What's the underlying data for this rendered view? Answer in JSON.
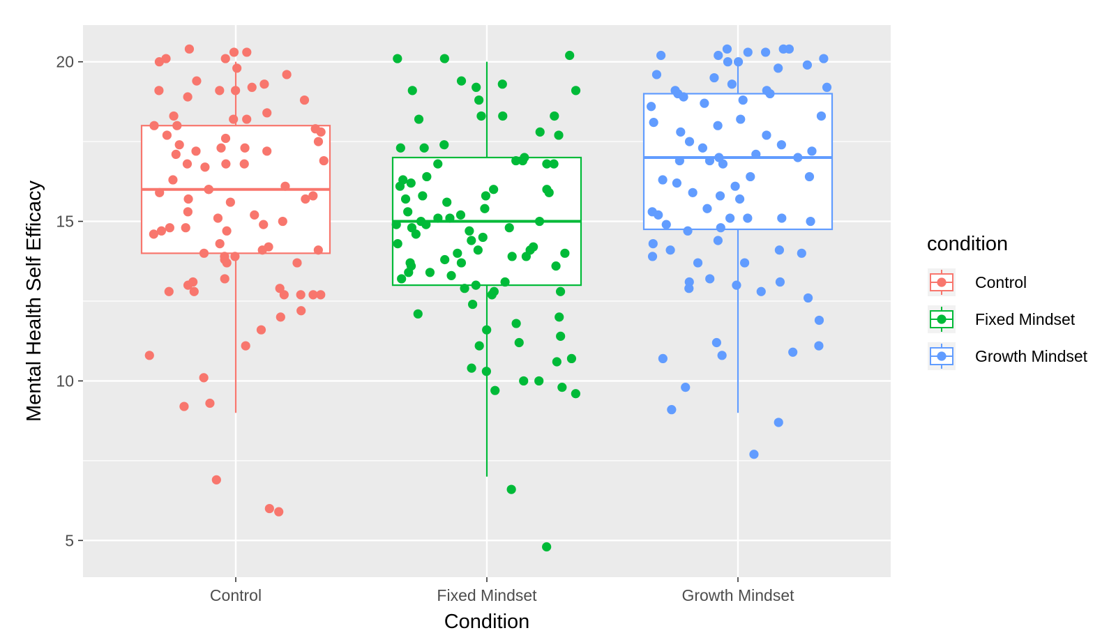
{
  "chart_data": {
    "type": "box",
    "xlabel": "Condition",
    "ylabel": "Mental Health Self Efficacy",
    "ylim": [
      3.85,
      21.15
    ],
    "yticks": [
      5,
      10,
      15,
      20
    ],
    "ytick_labels": [
      "5",
      "10",
      "15",
      "20"
    ],
    "categories": [
      "Control",
      "Fixed Mindset",
      "Growth Mindset"
    ],
    "grid": true,
    "legend": {
      "title": "condition",
      "position": "right",
      "entries": [
        "Control",
        "Fixed Mindset",
        "Growth Mindset"
      ]
    },
    "series": [
      {
        "name": "Control",
        "color": "#F8766D",
        "box": {
          "whisker_low": 9,
          "q1": 14,
          "median": 16,
          "q3": 18,
          "whisker_high": 20
        },
        "points": [
          20.3,
          20.3,
          20.1,
          20.4,
          20.1,
          19.8,
          20.0,
          18.8,
          19.2,
          19.1,
          19.4,
          19.6,
          19.3,
          19.1,
          19.1,
          18.9,
          18.4,
          18.3,
          18.2,
          18.2,
          18.0,
          18.0,
          17.9,
          17.8,
          17.7,
          17.6,
          17.5,
          17.4,
          17.3,
          17.3,
          17.2,
          17.2,
          17.1,
          16.9,
          16.8,
          16.8,
          16.8,
          16.7,
          16.3,
          16.1,
          16.0,
          16.0,
          15.9,
          15.8,
          15.7,
          15.7,
          15.6,
          15.3,
          15.2,
          15.1,
          15.0,
          14.9,
          14.8,
          14.8,
          14.7,
          14.7,
          14.6,
          14.3,
          14.2,
          14.1,
          14.1,
          14.0,
          13.9,
          13.9,
          13.8,
          13.7,
          13.7,
          13.2,
          13.1,
          13.0,
          12.9,
          12.8,
          12.8,
          12.7,
          12.7,
          12.7,
          12.7,
          12.2,
          12.0,
          11.6,
          11.1,
          10.8,
          10.1,
          9.3,
          9.2,
          6.9,
          6.0,
          5.9
        ]
      },
      {
        "name": "Fixed Mindset",
        "color": "#00BA38",
        "box": {
          "whisker_low": 7,
          "q1": 13,
          "median": 15,
          "q3": 17,
          "whisker_high": 20
        },
        "points": [
          20.1,
          20.2,
          20.1,
          19.4,
          19.3,
          19.2,
          19.1,
          19.1,
          18.8,
          18.3,
          18.3,
          18.3,
          18.2,
          17.8,
          17.7,
          17.4,
          17.3,
          17.3,
          17.0,
          16.9,
          16.9,
          16.8,
          16.8,
          16.8,
          16.4,
          16.3,
          16.2,
          16.1,
          16.0,
          16.0,
          15.9,
          15.8,
          15.8,
          15.7,
          15.6,
          15.4,
          15.3,
          15.2,
          15.1,
          15.1,
          15.0,
          15.0,
          14.9,
          14.9,
          14.8,
          14.8,
          14.7,
          14.6,
          14.5,
          14.4,
          14.3,
          14.2,
          14.1,
          14.1,
          14.0,
          14.0,
          13.9,
          13.9,
          13.8,
          13.7,
          13.7,
          13.6,
          13.6,
          13.4,
          13.4,
          13.3,
          13.2,
          13.1,
          13.0,
          12.9,
          12.8,
          12.8,
          12.7,
          12.4,
          12.1,
          12.0,
          11.8,
          11.6,
          11.4,
          11.2,
          11.1,
          10.7,
          10.6,
          10.4,
          10.3,
          10.0,
          10.0,
          9.8,
          9.7,
          9.6,
          6.6,
          4.8
        ]
      },
      {
        "name": "Growth Mindset",
        "color": "#619CFF",
        "box": {
          "whisker_low": 9,
          "q1": 14.75,
          "median": 17,
          "q3": 19,
          "whisker_high": 20
        },
        "points": [
          20.4,
          20.2,
          20.1,
          20.3,
          20.3,
          20.2,
          20.4,
          20.4,
          20.0,
          20.0,
          19.9,
          19.8,
          19.6,
          19.5,
          19.3,
          19.2,
          19.1,
          19.1,
          19.0,
          19.0,
          18.9,
          18.8,
          18.7,
          18.6,
          18.3,
          18.2,
          18.1,
          18.0,
          17.8,
          17.7,
          17.5,
          17.4,
          17.3,
          17.2,
          17.1,
          17.0,
          17.0,
          16.9,
          16.9,
          16.8,
          16.4,
          16.4,
          16.3,
          16.2,
          16.1,
          15.9,
          15.8,
          15.7,
          15.4,
          15.3,
          15.2,
          15.1,
          15.1,
          15.1,
          15.0,
          14.9,
          14.8,
          14.7,
          14.4,
          14.3,
          14.1,
          14.1,
          14.0,
          13.9,
          13.7,
          13.7,
          13.2,
          13.1,
          13.1,
          13.0,
          12.9,
          12.8,
          12.6,
          11.9,
          11.2,
          11.1,
          10.9,
          10.8,
          10.7,
          9.8,
          9.1,
          8.7,
          7.7
        ]
      }
    ]
  }
}
